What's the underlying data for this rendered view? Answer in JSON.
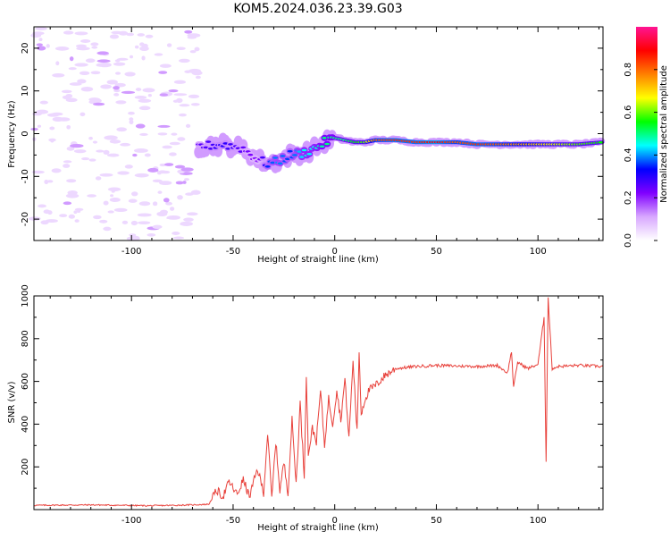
{
  "title": "KOM5.2024.036.23.39.G03",
  "chart_data": [
    {
      "type": "heatmap",
      "title": "KOM5.2024.036.23.39.G03",
      "xlabel": "Height of straight line (km)",
      "ylabel": "Frequency (Hz)",
      "xlim": [
        -148,
        132
      ],
      "ylim": [
        -25,
        25
      ],
      "x_ticks": [
        -100,
        -50,
        0,
        50,
        100
      ],
      "y_ticks": [
        -20,
        -10,
        0,
        10,
        20
      ],
      "colorbar": {
        "label": "Normalized spectral amplitude",
        "range": [
          0,
          1
        ],
        "ticks": [
          0.0,
          0.2,
          0.4,
          0.6,
          0.8
        ],
        "colormap": [
          "#ffffff",
          "#d8a8ff",
          "#8000ff",
          "#0000ff",
          "#00ffff",
          "#00ff00",
          "#ffff00",
          "#ff8000",
          "#ff0000",
          "#ff1493"
        ]
      },
      "noise_region_x": [
        -148,
        -67
      ],
      "signal_track": {
        "x": [
          -67,
          -55,
          -45,
          -38,
          -33,
          -28,
          -22,
          -15,
          -10,
          -5,
          0,
          5,
          10,
          15,
          20,
          30,
          40,
          50,
          60,
          70,
          80,
          90,
          100,
          110,
          120,
          132
        ],
        "freq": [
          -3.0,
          -2.5,
          -3.5,
          -6.0,
          -7.0,
          -6.5,
          -5.0,
          -4.5,
          -3.5,
          -2.0,
          -1.0,
          -1.5,
          -2.0,
          -2.0,
          -1.5,
          -1.5,
          -2.0,
          -2.0,
          -2.0,
          -2.5,
          -2.5,
          -2.5,
          -2.5,
          -2.5,
          -2.5,
          -2.0
        ],
        "amplitude": [
          0.25,
          0.3,
          0.25,
          0.2,
          0.35,
          0.4,
          0.35,
          0.45,
          0.45,
          0.5,
          0.5,
          0.5,
          0.55,
          0.6,
          0.8,
          0.85,
          0.85,
          0.9,
          0.8,
          0.85,
          0.8,
          0.75,
          0.7,
          0.65,
          0.6,
          0.55
        ]
      }
    },
    {
      "type": "line",
      "xlabel": "Height of straight line (km)",
      "ylabel": "SNR (v/v)",
      "xlim": [
        -148,
        132
      ],
      "ylim": [
        0,
        1000
      ],
      "x_ticks": [
        -100,
        -50,
        0,
        50,
        100
      ],
      "y_ticks": [
        200,
        400,
        600,
        800,
        1000
      ],
      "line_color": "#e8403a",
      "series": [
        {
          "x": [
            -148,
            -120,
            -90,
            -70,
            -62,
            -58,
            -55,
            -52,
            -48,
            -45,
            -42,
            -38,
            -35,
            -33,
            -31,
            -29,
            -27,
            -25,
            -23,
            -21,
            -19,
            -17,
            -15,
            -14,
            -13,
            -11,
            -9,
            -7,
            -5,
            -3,
            -1,
            1,
            3,
            5,
            7,
            9,
            11,
            12,
            13,
            15,
            17,
            20,
            25,
            30,
            40,
            50,
            60,
            70,
            80,
            85,
            87,
            88,
            90,
            95,
            100,
            103,
            104,
            105,
            107,
            110,
            120,
            132
          ],
          "y": [
            20,
            22,
            18,
            22,
            25,
            90,
            60,
            130,
            70,
            140,
            60,
            190,
            80,
            360,
            50,
            320,
            90,
            220,
            80,
            420,
            120,
            500,
            150,
            640,
            260,
            380,
            320,
            560,
            300,
            520,
            400,
            560,
            420,
            610,
            330,
            700,
            360,
            740,
            450,
            520,
            560,
            580,
            630,
            660,
            670,
            675,
            672,
            670,
            675,
            640,
            740,
            570,
            690,
            660,
            680,
            900,
            230,
            990,
            660,
            670,
            675,
            670
          ]
        }
      ]
    }
  ]
}
